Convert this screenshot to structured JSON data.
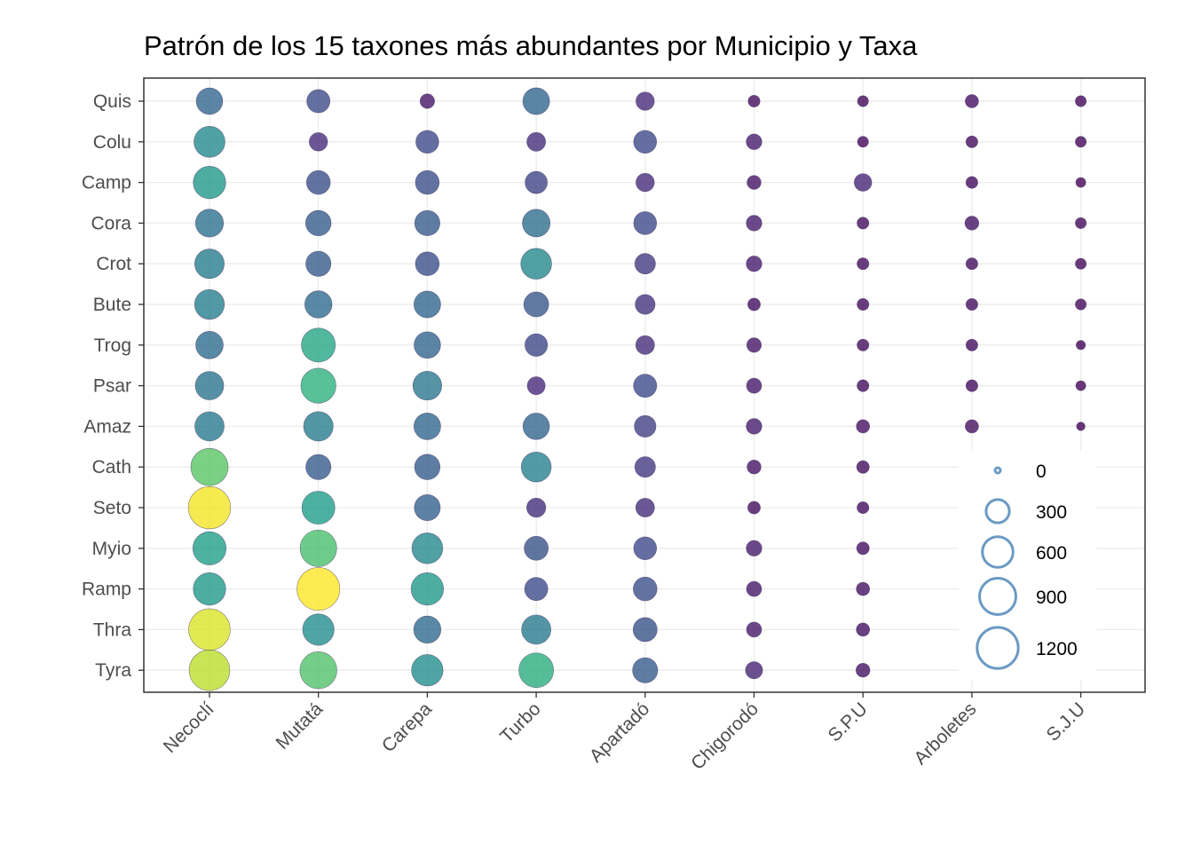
{
  "chart_data": {
    "type": "scatter",
    "title": "Patrón de los 15 taxones más abundantes por Municipio y Taxa",
    "xlabel": "",
    "ylabel": "",
    "grid": true,
    "legend_position": "right-inside-bottom",
    "x_categories": [
      "Necoclí",
      "Mutatá",
      "Carepa",
      "Turbo",
      "Apartadó",
      "Chigorodó",
      "S.P.U",
      "Arboletes",
      "S.J.U"
    ],
    "y_categories": [
      "Quis",
      "Colu",
      "Camp",
      "Cora",
      "Crot",
      "Bute",
      "Trog",
      "Psar",
      "Amaz",
      "Cath",
      "Seto",
      "Myio",
      "Ramp",
      "Thra",
      "Tyra"
    ],
    "size_legend": {
      "breaks": [
        0,
        300,
        600,
        900,
        1200
      ],
      "labels": [
        "0",
        "300",
        "600",
        "900",
        "1200"
      ],
      "color": "#6b9ac4"
    },
    "color_scale": "viridis",
    "color_range": [
      0,
      1300
    ],
    "values": [
      [
        420,
        300,
        80,
        430,
        160,
        40,
        30,
        60,
        30
      ],
      [
        620,
        160,
        290,
        170,
        290,
        100,
        30,
        40,
        30
      ],
      [
        690,
        320,
        320,
        270,
        160,
        70,
        140,
        40,
        20
      ],
      [
        480,
        380,
        370,
        470,
        290,
        100,
        40,
        70,
        30
      ],
      [
        550,
        370,
        320,
        610,
        220,
        100,
        40,
        40,
        30
      ],
      [
        560,
        450,
        430,
        360,
        200,
        50,
        40,
        40,
        30
      ],
      [
        460,
        770,
        420,
        280,
        170,
        80,
        40,
        40,
        15
      ],
      [
        500,
        830,
        520,
        150,
        300,
        90,
        40,
        40,
        20
      ],
      [
        540,
        550,
        430,
        420,
        250,
        100,
        60,
        60,
        10
      ],
      [
        960,
        370,
        380,
        570,
        220,
        70,
        50,
        null,
        null
      ],
      [
        1280,
        720,
        400,
        180,
        170,
        50,
        40,
        null,
        null
      ],
      [
        730,
        920,
        610,
        330,
        290,
        100,
        50,
        null,
        null
      ],
      [
        690,
        1320,
        690,
        300,
        320,
        90,
        60,
        null,
        null
      ],
      [
        1230,
        640,
        450,
        540,
        330,
        90,
        60,
        null,
        null
      ],
      [
        1170,
        940,
        640,
        810,
        370,
        130,
        70,
        null,
        null
      ]
    ]
  }
}
